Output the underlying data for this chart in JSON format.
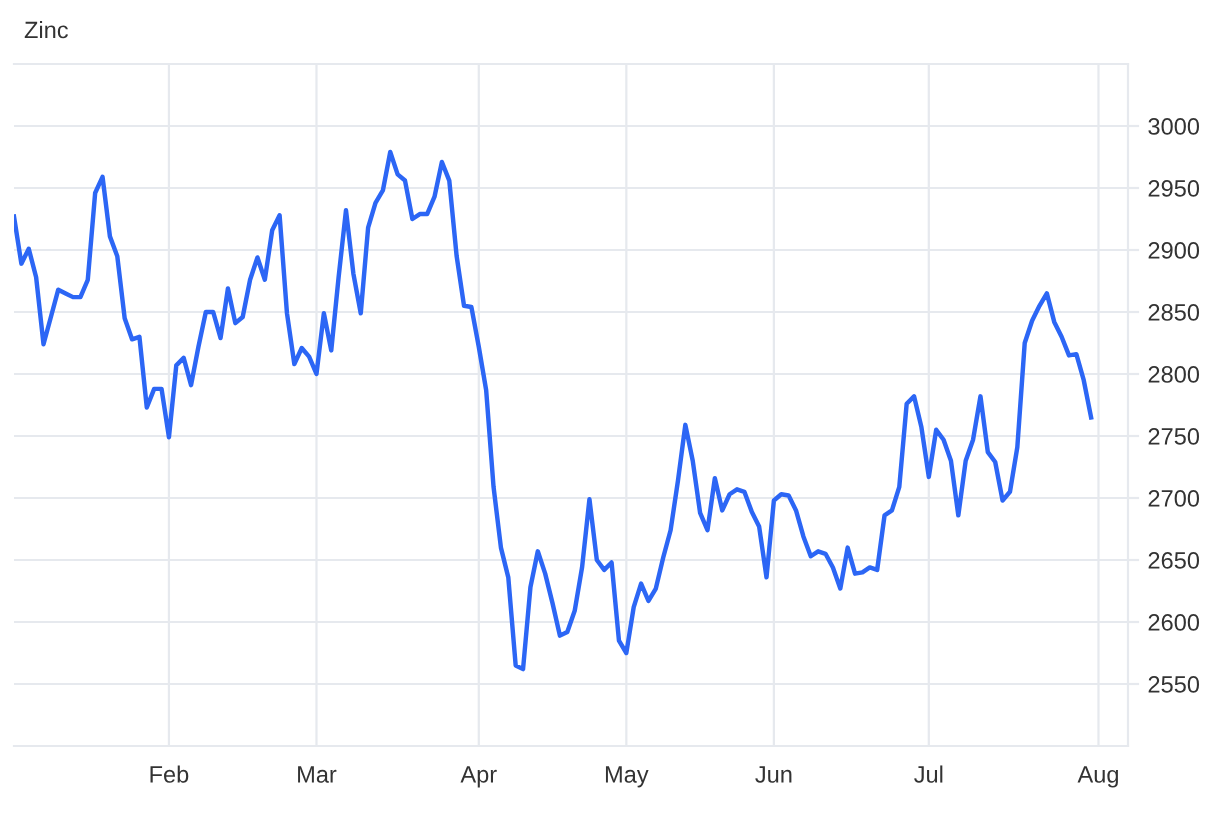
{
  "chart_data": {
    "type": "line",
    "title": "Zinc",
    "categories": [
      null,
      null,
      null,
      null,
      null,
      null,
      null,
      null,
      null,
      null,
      null,
      null,
      null,
      null,
      null,
      null,
      null,
      null,
      null,
      null,
      null,
      "Feb",
      null,
      null,
      null,
      null,
      null,
      null,
      null,
      null,
      null,
      null,
      null,
      null,
      null,
      null,
      null,
      null,
      null,
      null,
      null,
      "Mar",
      null,
      null,
      null,
      null,
      null,
      null,
      null,
      null,
      null,
      null,
      null,
      null,
      null,
      null,
      null,
      null,
      null,
      null,
      null,
      null,
      null,
      "Apr",
      null,
      null,
      null,
      null,
      null,
      null,
      null,
      null,
      null,
      null,
      null,
      null,
      null,
      null,
      null,
      null,
      null,
      null,
      null,
      "May",
      null,
      null,
      null,
      null,
      null,
      null,
      null,
      null,
      null,
      null,
      null,
      null,
      null,
      null,
      null,
      null,
      null,
      null,
      null,
      "Jun",
      null,
      null,
      null,
      null,
      null,
      null,
      null,
      null,
      null,
      null,
      null,
      null,
      null,
      null,
      null,
      null,
      null,
      null,
      null,
      null,
      "Jul",
      null,
      null,
      null,
      null,
      null,
      null,
      null,
      null,
      null,
      null,
      null,
      null,
      null,
      null,
      null,
      null,
      null,
      null,
      null,
      null,
      null,
      null,
      "Aug"
    ],
    "series": [
      {
        "color": "#2c66f5",
        "values": [
          2927,
          2889,
          2901,
          2878,
          2824,
          2846,
          2868,
          2865,
          2862,
          2862,
          2876,
          2946,
          2959,
          2911,
          2895,
          2845,
          2828,
          2830,
          2773,
          2788,
          2788,
          2749,
          2807,
          2813,
          2791,
          2822,
          2850,
          2850,
          2829,
          2869,
          2841,
          2846,
          2876,
          2894,
          2876,
          2916,
          2928,
          2849,
          2808,
          2821,
          2814,
          2800,
          2849,
          2819,
          2878,
          2932,
          2881,
          2849,
          2918,
          2938,
          2948,
          2979,
          2961,
          2956,
          2925,
          2929,
          2929,
          2943,
          2971,
          2956,
          2895,
          2855,
          2854,
          2822,
          2787,
          2709,
          2660,
          2636,
          2565,
          2562,
          2628,
          2657,
          2639,
          2615,
          2589,
          2592,
          2609,
          2644,
          2699,
          2650,
          2642,
          2648,
          2585,
          2575,
          2612,
          2631,
          2617,
          2627,
          2652,
          2674,
          2714,
          2759,
          2730,
          2688,
          2674,
          2716,
          2690,
          2703,
          2707,
          2705,
          2689,
          2677,
          2636,
          2698,
          2703,
          2702,
          2690,
          2669,
          2653,
          2657,
          2655,
          2644,
          2627,
          2660,
          2639,
          2640,
          2644,
          2642,
          2686,
          2690,
          2709,
          2776,
          2782,
          2757,
          2717,
          2755,
          2747,
          2730,
          2686,
          2730,
          2747,
          2782,
          2737,
          2729,
          2698,
          2705,
          2741,
          2825,
          2843,
          2855,
          2865,
          2842,
          2830,
          2815,
          2816,
          2795,
          2765,
          null
        ]
      }
    ],
    "ylim": [
      2500,
      3050
    ],
    "yticks": [
      2550,
      2600,
      2650,
      2700,
      2750,
      2800,
      2850,
      2900,
      2950,
      3000
    ],
    "grid": true,
    "line_style": "solid"
  }
}
